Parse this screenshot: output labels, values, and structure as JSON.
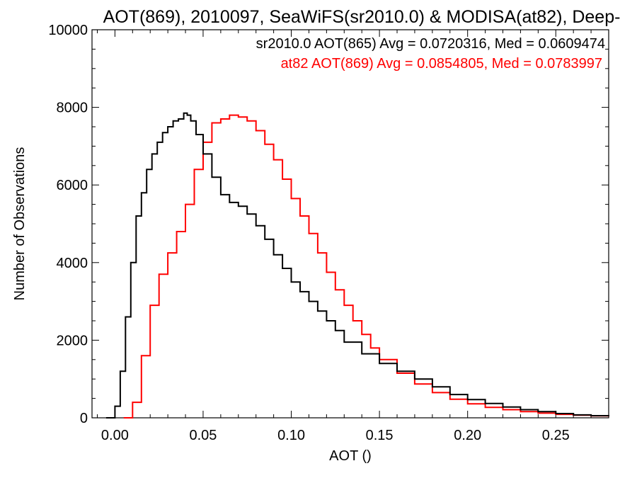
{
  "chart_data": {
    "type": "line",
    "title": "AOT(869), 2010097, SeaWiFS(sr2010.0) & MODISA(at82), Deep-",
    "xlabel": "AOT ()",
    "ylabel": "Number of Observations",
    "xlim": [
      -0.013,
      0.28
    ],
    "ylim": [
      0,
      10000
    ],
    "xticks": [
      0.0,
      0.05,
      0.1,
      0.15,
      0.2,
      0.25
    ],
    "xtick_labels": [
      "0.00",
      "0.05",
      "0.10",
      "0.15",
      "0.20",
      "0.25"
    ],
    "yticks": [
      0,
      2000,
      4000,
      6000,
      8000,
      10000
    ],
    "ytick_labels": [
      "0",
      "2000",
      "4000",
      "6000",
      "8000",
      "10000"
    ],
    "grid": false,
    "legend_position": "top-right",
    "legend": [
      "sr2010.0 AOT(865) Avg = 0.0720316, Med = 0.0609474",
      "at82 AOT(869) Avg = 0.0854805, Med = 0.0783997"
    ],
    "series": [
      {
        "color": "#000000",
        "x": [
          -0.005,
          0.0,
          0.003,
          0.006,
          0.009,
          0.012,
          0.015,
          0.018,
          0.021,
          0.024,
          0.027,
          0.03,
          0.033,
          0.036,
          0.039,
          0.041,
          0.043,
          0.046,
          0.05,
          0.055,
          0.06,
          0.065,
          0.07,
          0.075,
          0.08,
          0.085,
          0.09,
          0.095,
          0.1,
          0.105,
          0.11,
          0.115,
          0.12,
          0.125,
          0.13,
          0.14,
          0.15,
          0.16,
          0.17,
          0.18,
          0.19,
          0.2,
          0.21,
          0.22,
          0.23,
          0.24,
          0.25,
          0.26,
          0.27,
          0.28
        ],
        "values": [
          0,
          300,
          1200,
          2600,
          4000,
          5200,
          5800,
          6400,
          6800,
          7100,
          7350,
          7500,
          7650,
          7700,
          7850,
          7800,
          7650,
          7300,
          6800,
          6200,
          5750,
          5550,
          5450,
          5250,
          4950,
          4600,
          4200,
          3850,
          3500,
          3250,
          3000,
          2750,
          2500,
          2250,
          1950,
          1650,
          1400,
          1200,
          1000,
          800,
          600,
          470,
          370,
          280,
          210,
          160,
          110,
          75,
          55,
          40
        ]
      },
      {
        "color": "#ff0000",
        "x": [
          0.005,
          0.01,
          0.015,
          0.02,
          0.025,
          0.03,
          0.035,
          0.04,
          0.045,
          0.05,
          0.055,
          0.06,
          0.065,
          0.07,
          0.075,
          0.08,
          0.085,
          0.09,
          0.095,
          0.1,
          0.105,
          0.11,
          0.115,
          0.12,
          0.125,
          0.13,
          0.135,
          0.14,
          0.145,
          0.15,
          0.16,
          0.17,
          0.18,
          0.19,
          0.2,
          0.21,
          0.22,
          0.23,
          0.24,
          0.25,
          0.26,
          0.27,
          0.28
        ],
        "values": [
          0,
          400,
          1600,
          2900,
          3700,
          4250,
          4800,
          5500,
          6400,
          7100,
          7600,
          7700,
          7800,
          7750,
          7650,
          7400,
          7050,
          6650,
          6150,
          5650,
          5200,
          4750,
          4250,
          3750,
          3300,
          2900,
          2500,
          2150,
          1800,
          1500,
          1150,
          870,
          650,
          480,
          360,
          270,
          210,
          160,
          120,
          90,
          70,
          50,
          40
        ]
      }
    ]
  }
}
